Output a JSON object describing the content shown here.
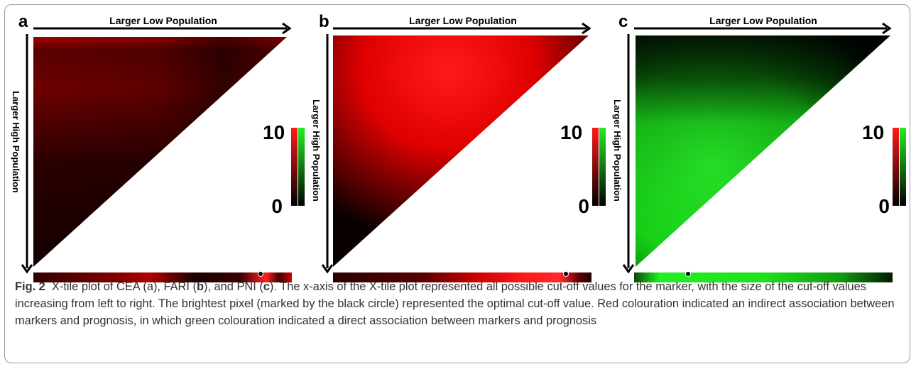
{
  "colors": {
    "red": "#ff1a1a",
    "green": "#22ee22",
    "black": "#000000"
  },
  "panels": [
    {
      "letter": "a",
      "top_label": "Larger Low Population",
      "side_label": "Larger High Population",
      "scale_max": "10",
      "scale_min": "0",
      "color_scheme": "red",
      "optimal_cutoff_fraction": 0.88
    },
    {
      "letter": "b",
      "top_label": "Larger Low Population",
      "side_label": "Larger High Population",
      "scale_max": "10",
      "scale_min": "0",
      "color_scheme": "red",
      "optimal_cutoff_fraction": 0.88
    },
    {
      "letter": "c",
      "top_label": "Larger Low Population",
      "side_label": "Larger High Population",
      "scale_max": "10",
      "scale_min": "0",
      "color_scheme": "green",
      "optimal_cutoff_fraction": 0.21
    }
  ],
  "caption": {
    "label": "Fig. 2",
    "part1": "X-tile plot of CEA (a), FARI (",
    "b": "b",
    "part2": "), and PNI (",
    "c": "c",
    "part3": "). The x-axis of the X-tile plot represented all possible cut-off values for the marker, with the size of the cut-off values increasing from left to right. The brightest pixel (marked by the black circle) represented the optimal cut-off value. Red colouration indicated an indirect association between markers and prognosis, in which green colouration indicated a direct association between markers and prognosis"
  }
}
